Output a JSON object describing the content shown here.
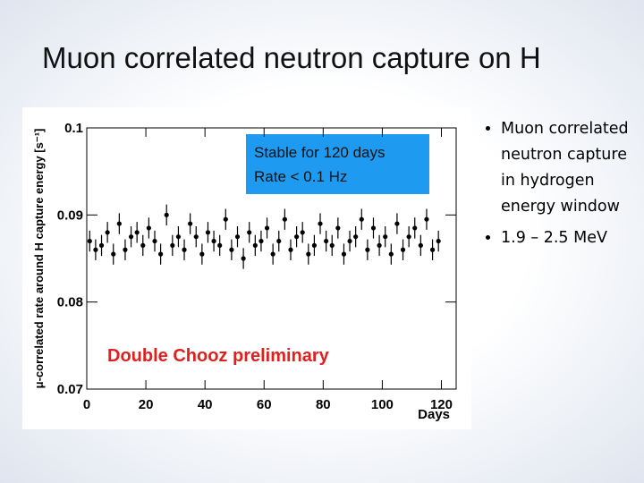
{
  "slide_title": "Muon correlated neutron capture on H",
  "bullets": [
    "Muon correlated neutron capture in hydrogen energy window",
    "1.9 – 2.5 MeV"
  ],
  "chart_data": {
    "type": "scatter",
    "annotations": [
      "Stable for 120 days",
      "Rate < 0.1 Hz",
      "Double Chooz preliminary"
    ],
    "ylabel": "μ-correlated rate around H capture energy [s⁻¹]",
    "xlabel": "Days",
    "x": [
      1,
      3,
      5,
      7,
      9,
      11,
      13,
      15,
      17,
      19,
      21,
      23,
      25,
      27,
      29,
      31,
      33,
      35,
      37,
      39,
      41,
      43,
      45,
      47,
      49,
      51,
      53,
      55,
      57,
      59,
      61,
      63,
      65,
      67,
      69,
      71,
      73,
      75,
      77,
      79,
      81,
      83,
      85,
      87,
      89,
      91,
      93,
      95,
      97,
      99,
      101,
      103,
      105,
      107,
      109,
      111,
      113,
      115,
      117,
      119
    ],
    "series": [
      {
        "color": "#000000",
        "values": [
          0.087,
          0.086,
          0.0865,
          0.088,
          0.0855,
          0.089,
          0.086,
          0.0875,
          0.088,
          0.0865,
          0.0885,
          0.087,
          0.0855,
          0.09,
          0.0865,
          0.0875,
          0.086,
          0.089,
          0.0875,
          0.0855,
          0.088,
          0.087,
          0.0865,
          0.0895,
          0.086,
          0.0875,
          0.085,
          0.088,
          0.0865,
          0.087,
          0.0885,
          0.0855,
          0.087,
          0.0895,
          0.086,
          0.0875,
          0.088,
          0.0855,
          0.0865,
          0.089,
          0.087,
          0.0865,
          0.0885,
          0.0855,
          0.087,
          0.0875,
          0.0895,
          0.086,
          0.0885,
          0.0865,
          0.0875,
          0.0855,
          0.089,
          0.086,
          0.0875,
          0.0885,
          0.0865,
          0.0895,
          0.086,
          0.087
        ]
      }
    ],
    "error": 0.0012,
    "xlim": [
      0,
      125
    ],
    "ylim": [
      0.07,
      0.1
    ],
    "xticks": [
      0,
      20,
      40,
      60,
      80,
      100,
      120
    ],
    "yticks": [
      0.07,
      0.08,
      0.09,
      0.1
    ]
  }
}
